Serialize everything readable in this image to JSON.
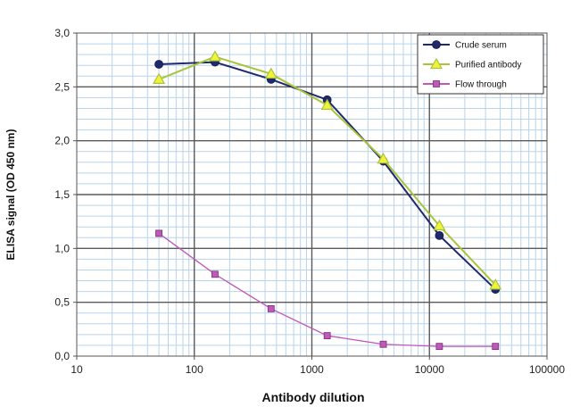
{
  "chart_data": {
    "type": "line",
    "xlabel": "Antibody dilution",
    "ylabel": "ELISA signal (OD 450 nm)",
    "x_scale": "log",
    "xlim": [
      10,
      100000
    ],
    "ylim": [
      0,
      3.0
    ],
    "x_ticks": [
      "10",
      "100",
      "1000",
      "10000",
      "100000"
    ],
    "y_ticks": [
      "0,0",
      "0,5",
      "1,0",
      "1,5",
      "2,0",
      "2,5",
      "3,0"
    ],
    "grid": true,
    "legend_position": "top-right",
    "x": [
      50,
      150,
      450,
      1350,
      4050,
      12150,
      36450
    ],
    "series": [
      {
        "name": "Crude serum",
        "color": "#1f2a6b",
        "marker": "circle",
        "values": [
          2.71,
          2.73,
          2.57,
          2.38,
          1.81,
          1.12,
          0.62
        ]
      },
      {
        "name": "Purified antibody",
        "color": "#a8c43a",
        "marker": "triangle",
        "values": [
          2.57,
          2.78,
          2.62,
          2.33,
          1.83,
          1.21,
          0.66
        ]
      },
      {
        "name": "Flow through",
        "color": "#c058b8",
        "marker": "square",
        "values": [
          1.14,
          0.76,
          0.44,
          0.19,
          0.11,
          0.09,
          0.09
        ]
      }
    ]
  }
}
